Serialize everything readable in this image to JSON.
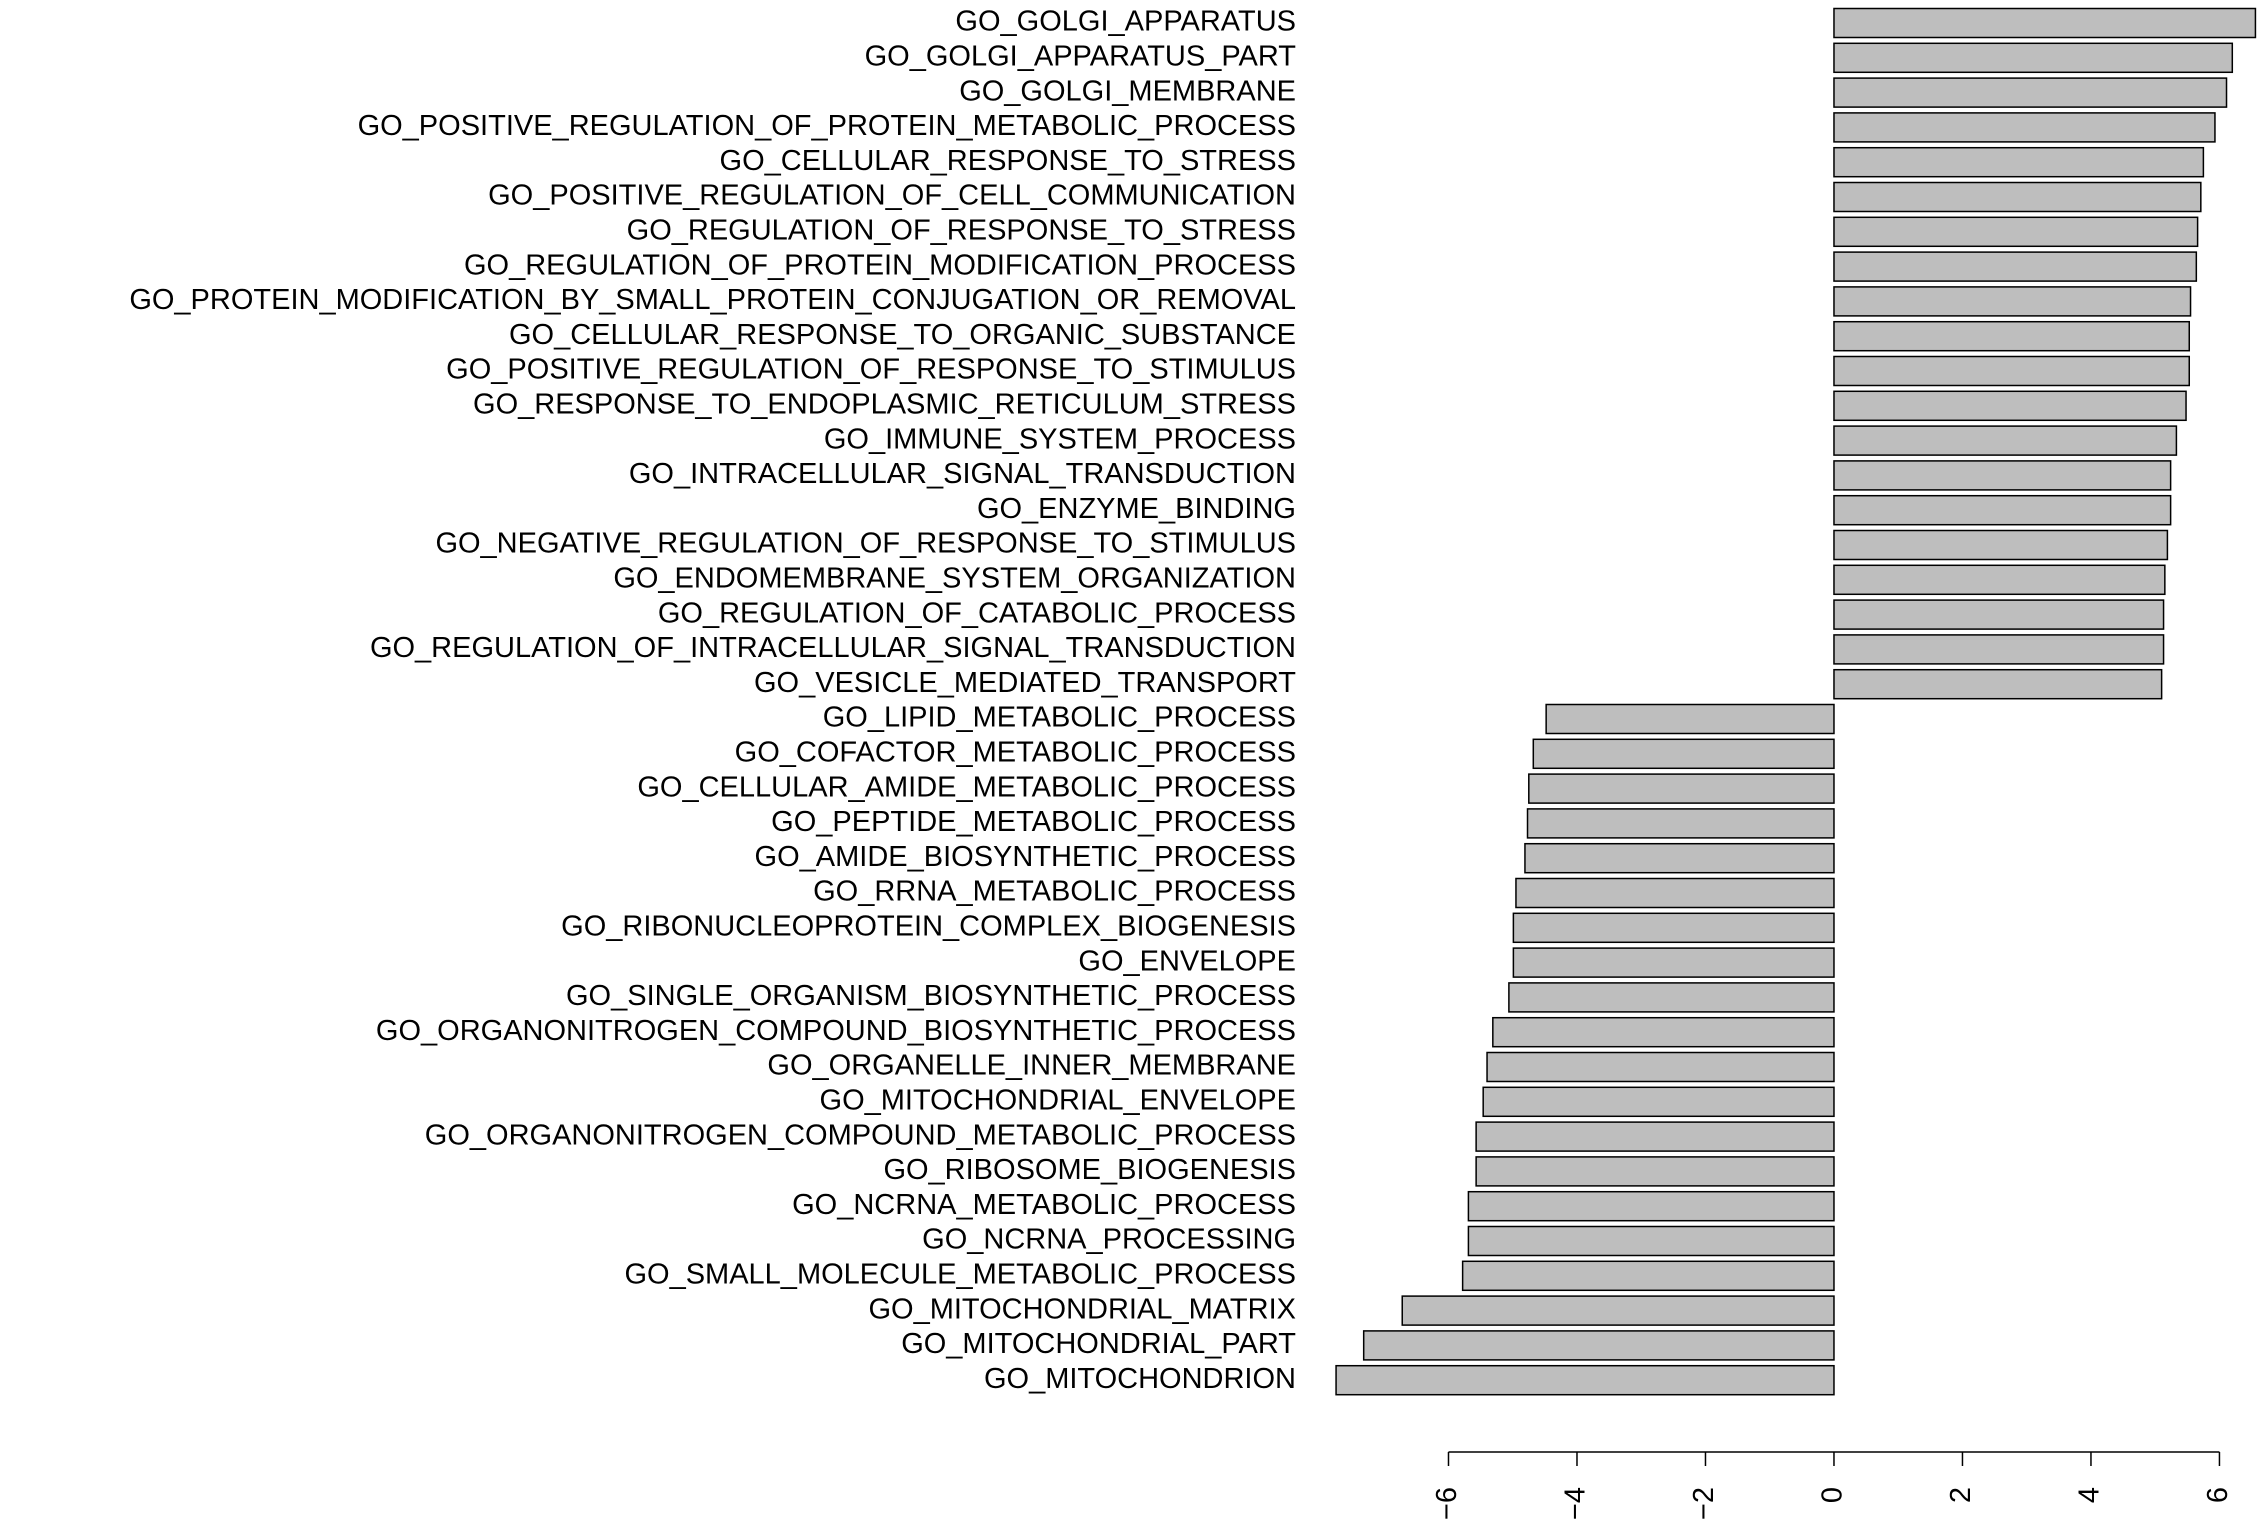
{
  "chart_data": {
    "type": "barh",
    "categories": [
      "GO_GOLGI_APPARATUS",
      "GO_GOLGI_APPARATUS_PART",
      "GO_GOLGI_MEMBRANE",
      "GO_POSITIVE_REGULATION_OF_PROTEIN_METABOLIC_PROCESS",
      "GO_CELLULAR_RESPONSE_TO_STRESS",
      "GO_POSITIVE_REGULATION_OF_CELL_COMMUNICATION",
      "GO_REGULATION_OF_RESPONSE_TO_STRESS",
      "GO_REGULATION_OF_PROTEIN_MODIFICATION_PROCESS",
      "GO_PROTEIN_MODIFICATION_BY_SMALL_PROTEIN_CONJUGATION_OR_REMOVAL",
      "GO_CELLULAR_RESPONSE_TO_ORGANIC_SUBSTANCE",
      "GO_POSITIVE_REGULATION_OF_RESPONSE_TO_STIMULUS",
      "GO_RESPONSE_TO_ENDOPLASMIC_RETICULUM_STRESS",
      "GO_IMMUNE_SYSTEM_PROCESS",
      "GO_INTRACELLULAR_SIGNAL_TRANSDUCTION",
      "GO_ENZYME_BINDING",
      "GO_NEGATIVE_REGULATION_OF_RESPONSE_TO_STIMULUS",
      "GO_ENDOMEMBRANE_SYSTEM_ORGANIZATION",
      "GO_REGULATION_OF_CATABOLIC_PROCESS",
      "GO_REGULATION_OF_INTRACELLULAR_SIGNAL_TRANSDUCTION",
      "GO_VESICLE_MEDIATED_TRANSPORT",
      "GO_LIPID_METABOLIC_PROCESS",
      "GO_COFACTOR_METABOLIC_PROCESS",
      "GO_CELLULAR_AMIDE_METABOLIC_PROCESS",
      "GO_PEPTIDE_METABOLIC_PROCESS",
      "GO_AMIDE_BIOSYNTHETIC_PROCESS",
      "GO_RRNA_METABOLIC_PROCESS",
      "GO_RIBONUCLEOPROTEIN_COMPLEX_BIOGENESIS",
      "GO_ENVELOPE",
      "GO_SINGLE_ORGANISM_BIOSYNTHETIC_PROCESS",
      "GO_ORGANONITROGEN_COMPOUND_BIOSYNTHETIC_PROCESS",
      "GO_ORGANELLE_INNER_MEMBRANE",
      "GO_MITOCHONDRIAL_ENVELOPE",
      "GO_ORGANONITROGEN_COMPOUND_METABOLIC_PROCESS",
      "GO_RIBOSOME_BIOGENESIS",
      "GO_NCRNA_METABOLIC_PROCESS",
      "GO_NCRNA_PROCESSING",
      "GO_SMALL_MOLECULE_METABOLIC_PROCESS",
      "GO_MITOCHONDRIAL_MATRIX",
      "GO_MITOCHONDRIAL_PART",
      "GO_MITOCHONDRION"
    ],
    "values": [
      6.56,
      6.2,
      6.11,
      5.93,
      5.75,
      5.71,
      5.66,
      5.64,
      5.55,
      5.53,
      5.53,
      5.48,
      5.33,
      5.24,
      5.24,
      5.19,
      5.15,
      5.13,
      5.13,
      5.1,
      -4.48,
      -4.68,
      -4.75,
      -4.77,
      -4.81,
      -4.95,
      -4.99,
      -4.99,
      -5.06,
      -5.31,
      -5.4,
      -5.46,
      -5.57,
      -5.57,
      -5.69,
      -5.69,
      -5.78,
      -6.72,
      -7.32,
      -7.75
    ],
    "color": "#bebebe",
    "xlim": [
      -8,
      6.6
    ],
    "xticks": [
      {
        "value": -6,
        "label": "−6"
      },
      {
        "value": -4,
        "label": "−4"
      },
      {
        "value": -2,
        "label": "−2"
      },
      0,
      2,
      4,
      6
    ]
  }
}
